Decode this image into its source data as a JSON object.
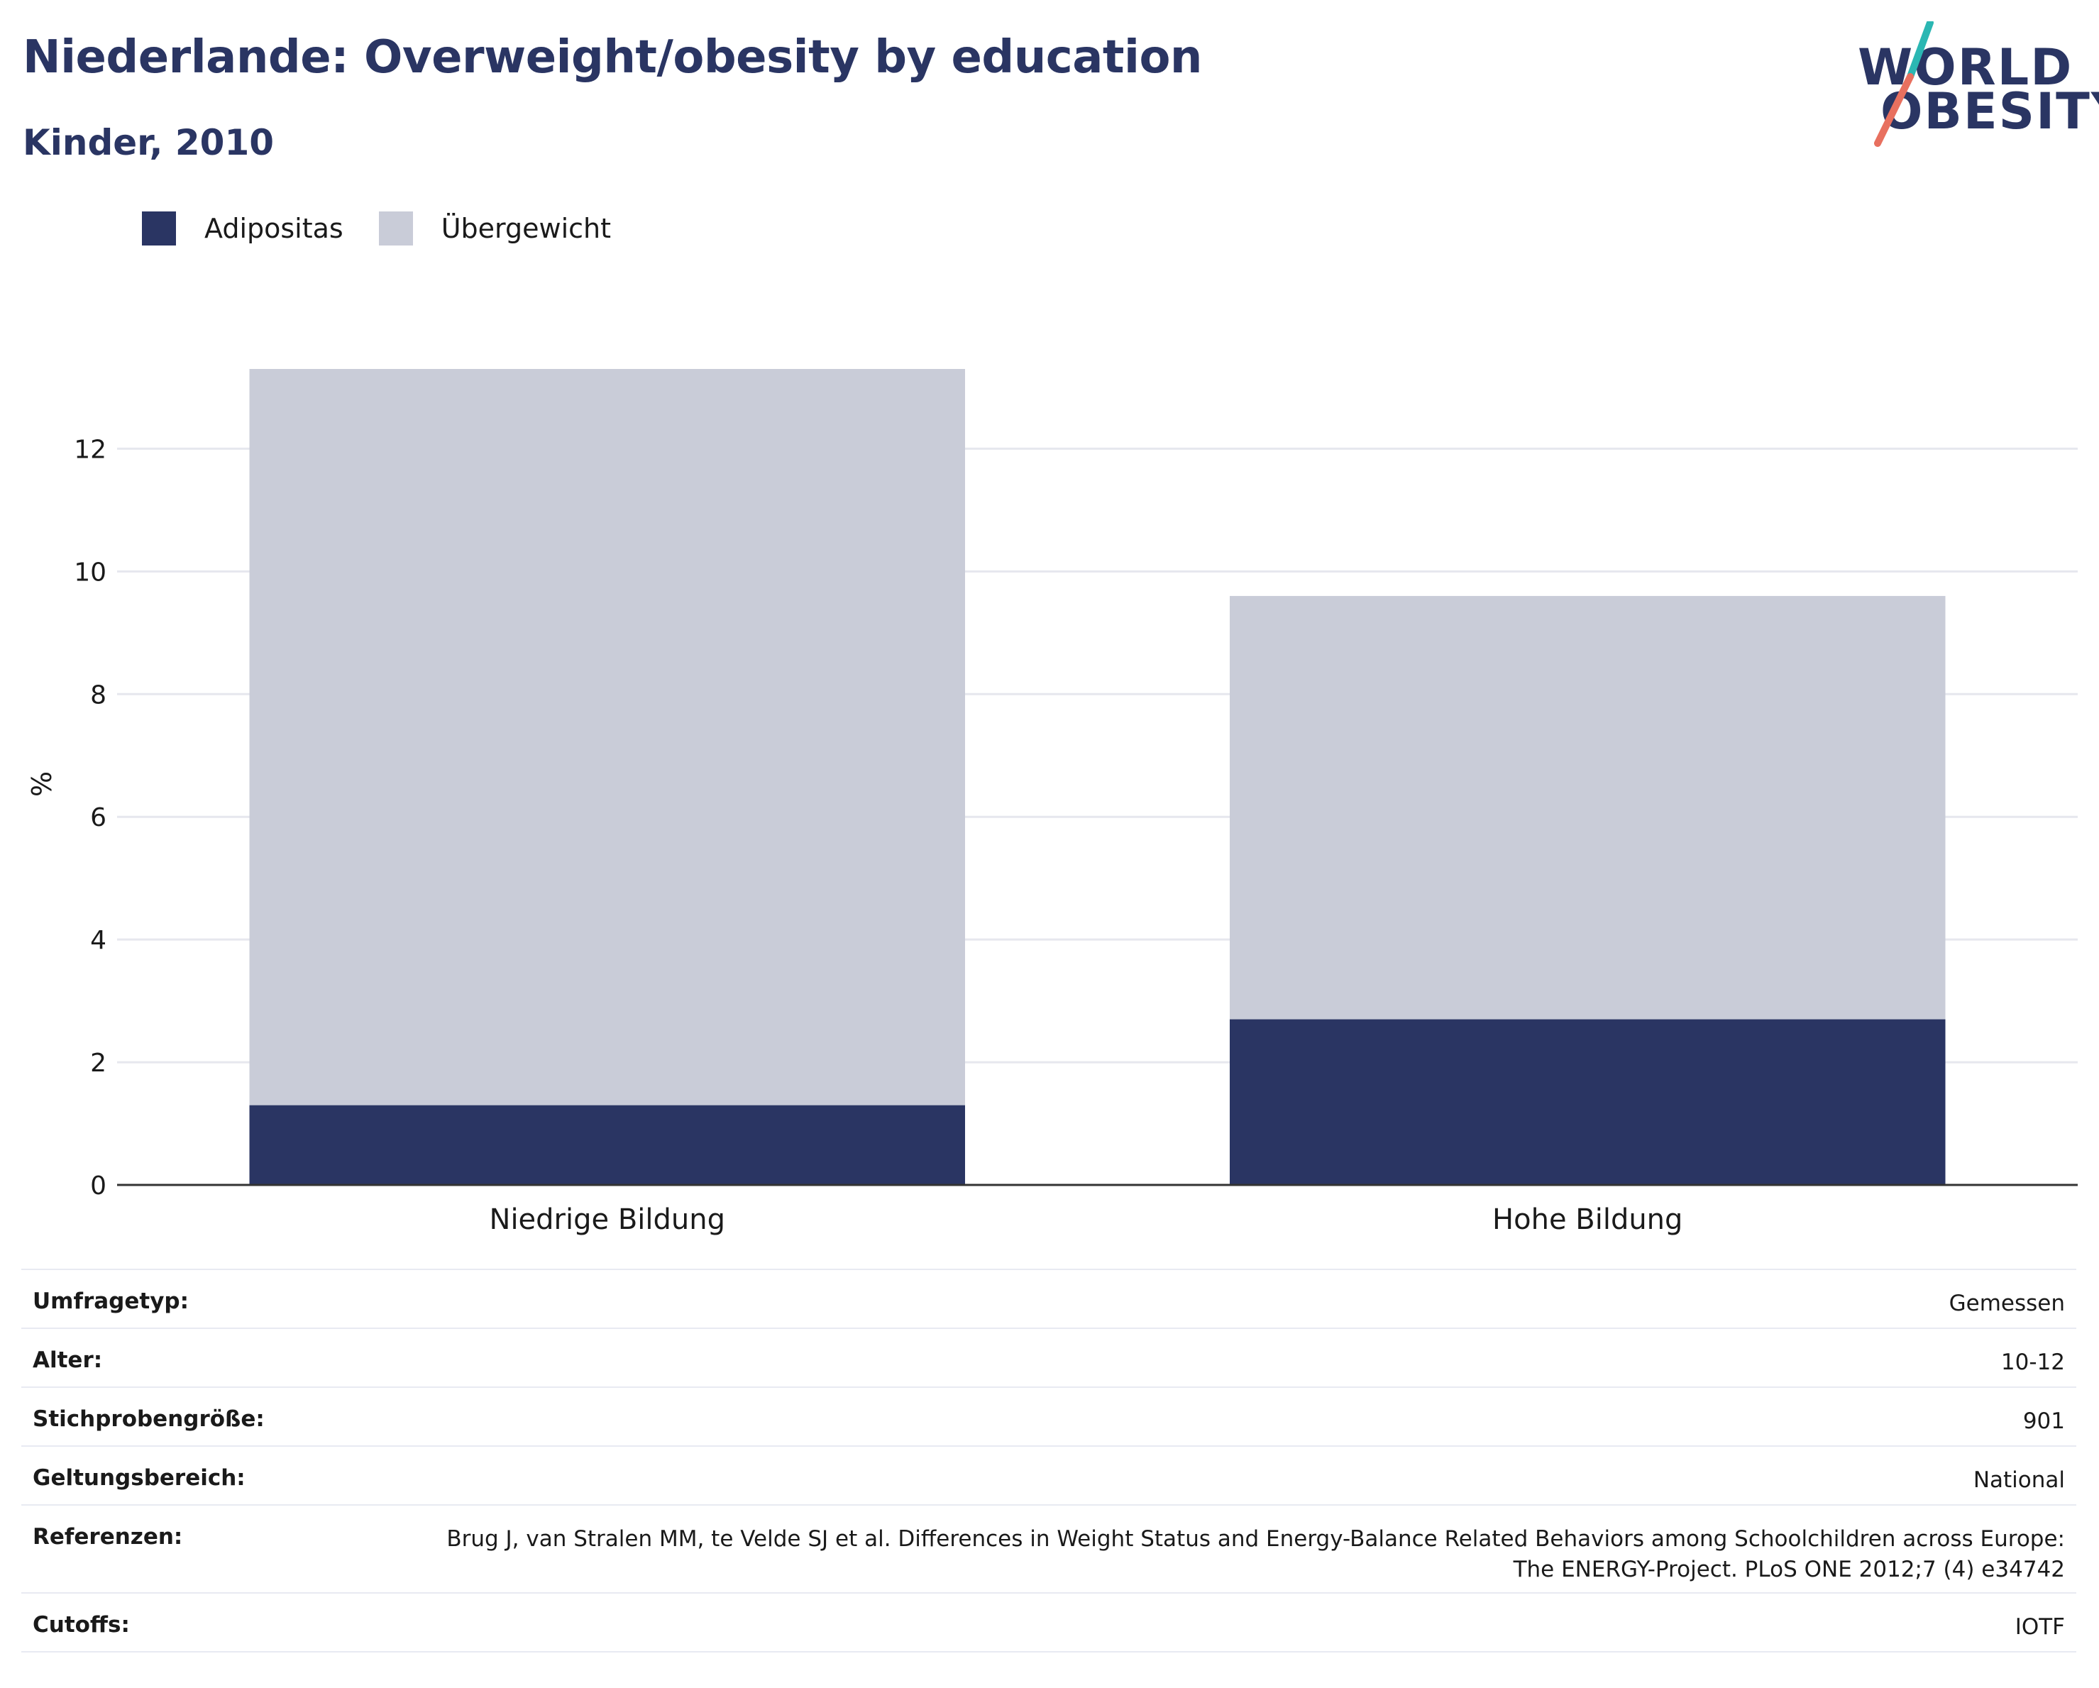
{
  "header": {
    "title": "Niederlande: Overweight/obesity by education",
    "subtitle": "Kinder, 2010"
  },
  "logo": {
    "line1": "WORLD",
    "line2": "OBESITY",
    "accent_colors": [
      "#2bb7b3",
      "#e8705f"
    ]
  },
  "legend": [
    {
      "label": "Adipositas",
      "color": "#2a3563"
    },
    {
      "label": "Übergewicht",
      "color": "#c9ccd8"
    }
  ],
  "chart_data": {
    "type": "bar",
    "stacked": true,
    "categories": [
      "Niedrige Bildung",
      "Hohe Bildung"
    ],
    "series": [
      {
        "name": "Adipositas",
        "values": [
          1.3,
          2.7
        ],
        "color": "#2a3563"
      },
      {
        "name": "Übergewicht",
        "values": [
          12.0,
          6.9
        ],
        "color": "#c9ccd8"
      }
    ],
    "ylabel": "%",
    "ylim": [
      0,
      13.3
    ],
    "yticks": [
      0,
      2,
      4,
      6,
      8,
      10,
      12
    ],
    "grid": true,
    "legend_position": "top-left"
  },
  "info_table": [
    {
      "key": "Umfragetyp:",
      "value": "Gemessen"
    },
    {
      "key": "Alter:",
      "value": "10-12"
    },
    {
      "key": "Stichprobengröße:",
      "value": "901"
    },
    {
      "key": "Geltungsbereich:",
      "value": "National"
    },
    {
      "key": "Referenzen:",
      "value": "Brug J, van Stralen MM, te Velde SJ et al. Differences in Weight Status and Energy-Balance Related Behaviors among Schoolchildren across Europe: The ENERGY-Project. PLoS ONE 2012;7 (4) e34742"
    },
    {
      "key": "Cutoffs:",
      "value": "IOTF"
    }
  ]
}
